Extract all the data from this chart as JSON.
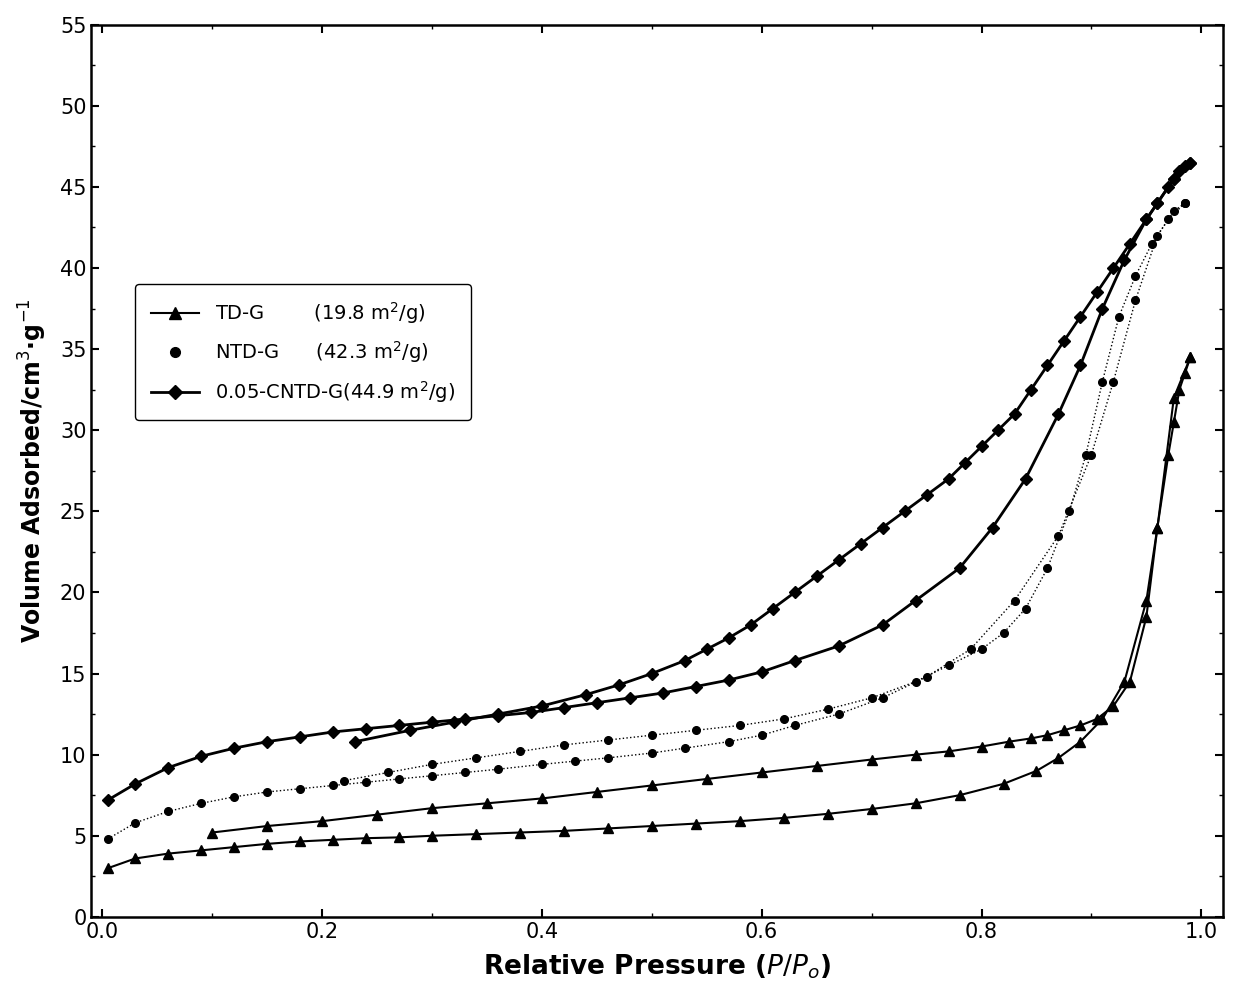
{
  "xlabel": "Relative Pressure ($P/P_o$)",
  "ylabel": "Volume Adsorbed/cm$^3$·g$^{-1}$",
  "xlim": [
    -0.01,
    1.02
  ],
  "ylim": [
    0,
    55
  ],
  "yticks": [
    0,
    5,
    10,
    15,
    20,
    25,
    30,
    35,
    40,
    45,
    50,
    55
  ],
  "xticks": [
    0.0,
    0.2,
    0.4,
    0.6,
    0.8,
    1.0
  ],
  "legend_entries": [
    "TD-G        (19.8 m$^2$/g)",
    "NTD-G      (42.3 m$^2$/g)",
    "0.05-CNTD-G(44.9 m$^2$/g)"
  ],
  "tdg_adsorption_x": [
    0.005,
    0.03,
    0.06,
    0.09,
    0.12,
    0.15,
    0.18,
    0.21,
    0.24,
    0.27,
    0.3,
    0.34,
    0.38,
    0.42,
    0.46,
    0.5,
    0.54,
    0.58,
    0.62,
    0.66,
    0.7,
    0.74,
    0.78,
    0.82,
    0.85,
    0.87,
    0.89,
    0.91,
    0.93,
    0.95,
    0.96,
    0.97,
    0.975,
    0.98,
    0.985,
    0.99
  ],
  "tdg_adsorption_y": [
    3.0,
    3.6,
    3.9,
    4.1,
    4.3,
    4.5,
    4.65,
    4.75,
    4.85,
    4.9,
    5.0,
    5.1,
    5.2,
    5.3,
    5.45,
    5.6,
    5.75,
    5.9,
    6.1,
    6.35,
    6.65,
    7.0,
    7.5,
    8.2,
    9.0,
    9.8,
    10.8,
    12.2,
    14.5,
    19.5,
    24.0,
    28.5,
    30.5,
    32.5,
    33.5,
    34.5
  ],
  "tdg_desorption_x": [
    0.99,
    0.975,
    0.96,
    0.95,
    0.935,
    0.92,
    0.905,
    0.89,
    0.875,
    0.86,
    0.845,
    0.825,
    0.8,
    0.77,
    0.74,
    0.7,
    0.65,
    0.6,
    0.55,
    0.5,
    0.45,
    0.4,
    0.35,
    0.3,
    0.25,
    0.2,
    0.15,
    0.1
  ],
  "tdg_desorption_y": [
    34.5,
    32.0,
    24.0,
    18.5,
    14.5,
    13.0,
    12.2,
    11.8,
    11.5,
    11.2,
    11.0,
    10.8,
    10.5,
    10.2,
    10.0,
    9.7,
    9.3,
    8.9,
    8.5,
    8.1,
    7.7,
    7.3,
    7.0,
    6.7,
    6.3,
    5.9,
    5.6,
    5.2
  ],
  "ntdg_adsorption_x": [
    0.005,
    0.03,
    0.06,
    0.09,
    0.12,
    0.15,
    0.18,
    0.21,
    0.24,
    0.27,
    0.3,
    0.33,
    0.36,
    0.4,
    0.43,
    0.46,
    0.5,
    0.53,
    0.57,
    0.6,
    0.63,
    0.67,
    0.71,
    0.75,
    0.79,
    0.83,
    0.87,
    0.9,
    0.92,
    0.94,
    0.96,
    0.975,
    0.985
  ],
  "ntdg_adsorption_y": [
    4.8,
    5.8,
    6.5,
    7.0,
    7.4,
    7.7,
    7.9,
    8.1,
    8.3,
    8.5,
    8.7,
    8.9,
    9.1,
    9.4,
    9.6,
    9.8,
    10.1,
    10.4,
    10.8,
    11.2,
    11.8,
    12.5,
    13.5,
    14.8,
    16.5,
    19.5,
    23.5,
    28.5,
    33.0,
    38.0,
    42.0,
    43.5,
    44.0
  ],
  "ntdg_desorption_x": [
    0.985,
    0.97,
    0.955,
    0.94,
    0.925,
    0.91,
    0.895,
    0.88,
    0.86,
    0.84,
    0.82,
    0.8,
    0.77,
    0.74,
    0.7,
    0.66,
    0.62,
    0.58,
    0.54,
    0.5,
    0.46,
    0.42,
    0.38,
    0.34,
    0.3,
    0.26,
    0.22
  ],
  "ntdg_desorption_y": [
    44.0,
    43.0,
    41.5,
    39.5,
    37.0,
    33.0,
    28.5,
    25.0,
    21.5,
    19.0,
    17.5,
    16.5,
    15.5,
    14.5,
    13.5,
    12.8,
    12.2,
    11.8,
    11.5,
    11.2,
    10.9,
    10.6,
    10.2,
    9.8,
    9.4,
    8.9,
    8.4
  ],
  "cntdg_adsorption_x": [
    0.005,
    0.03,
    0.06,
    0.09,
    0.12,
    0.15,
    0.18,
    0.21,
    0.24,
    0.27,
    0.3,
    0.33,
    0.36,
    0.39,
    0.42,
    0.45,
    0.48,
    0.51,
    0.54,
    0.57,
    0.6,
    0.63,
    0.67,
    0.71,
    0.74,
    0.78,
    0.81,
    0.84,
    0.87,
    0.89,
    0.91,
    0.93,
    0.95,
    0.96,
    0.97,
    0.975,
    0.98,
    0.985,
    0.99
  ],
  "cntdg_adsorption_y": [
    7.2,
    8.2,
    9.2,
    9.9,
    10.4,
    10.8,
    11.1,
    11.4,
    11.6,
    11.8,
    12.0,
    12.2,
    12.4,
    12.6,
    12.9,
    13.2,
    13.5,
    13.8,
    14.2,
    14.6,
    15.1,
    15.8,
    16.7,
    18.0,
    19.5,
    21.5,
    24.0,
    27.0,
    31.0,
    34.0,
    37.5,
    40.5,
    43.0,
    44.0,
    45.0,
    45.5,
    46.0,
    46.3,
    46.5
  ],
  "cntdg_desorption_x": [
    0.99,
    0.975,
    0.96,
    0.95,
    0.935,
    0.92,
    0.905,
    0.89,
    0.875,
    0.86,
    0.845,
    0.83,
    0.815,
    0.8,
    0.785,
    0.77,
    0.75,
    0.73,
    0.71,
    0.69,
    0.67,
    0.65,
    0.63,
    0.61,
    0.59,
    0.57,
    0.55,
    0.53,
    0.5,
    0.47,
    0.44,
    0.4,
    0.36,
    0.32,
    0.28,
    0.23
  ],
  "cntdg_desorption_y": [
    46.5,
    45.5,
    44.0,
    43.0,
    41.5,
    40.0,
    38.5,
    37.0,
    35.5,
    34.0,
    32.5,
    31.0,
    30.0,
    29.0,
    28.0,
    27.0,
    26.0,
    25.0,
    24.0,
    23.0,
    22.0,
    21.0,
    20.0,
    19.0,
    18.0,
    17.2,
    16.5,
    15.8,
    15.0,
    14.3,
    13.7,
    13.0,
    12.5,
    12.0,
    11.5,
    10.8
  ]
}
